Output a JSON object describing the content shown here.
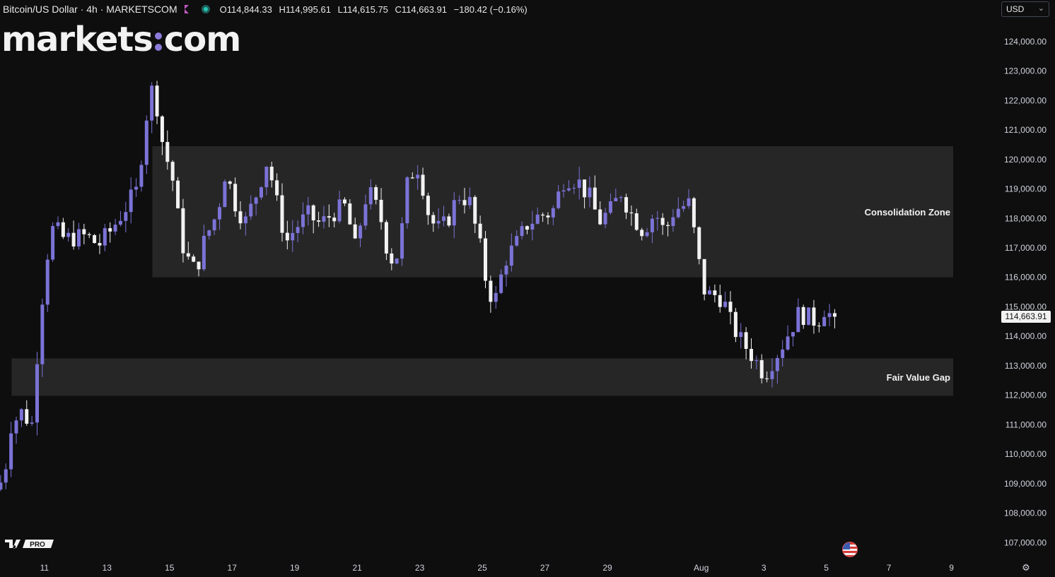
{
  "header": {
    "symbol": "Bitcoin/US Dollar · 4h · MARKETSCOM",
    "open": "O114,844.33",
    "high": "H114,995.61",
    "low": "L114,615.75",
    "close": "C114,663.91",
    "change": "−180.42 (−0.16%)"
  },
  "logo": {
    "part1": "markets",
    "part2": "com"
  },
  "currency": {
    "value": "USD"
  },
  "tv_badge": {
    "label": "PRO"
  },
  "colors": {
    "background": "#0e0e0f",
    "bullish": "#7b73d6",
    "bearish": "#f2f2f2",
    "zone": "#262626",
    "text": "#d1d4dc"
  },
  "last_price_label": "114,663.91",
  "chart_data": {
    "type": "candlestick",
    "title": "Bitcoin/US Dollar · 4h · MARKETSCOM",
    "ylim": [
      106600,
      124500
    ],
    "y_ticks": [
      "124,000.00",
      "123,000.00",
      "122,000.00",
      "121,000.00",
      "120,000.00",
      "119,000.00",
      "118,000.00",
      "117,000.00",
      "116,000.00",
      "115,000.00",
      "114,000.00",
      "113,000.00",
      "112,000.00",
      "111,000.00",
      "110,000.00",
      "109,000.00",
      "108,000.00",
      "107,000.00"
    ],
    "y_tick_values": [
      124000,
      123000,
      122000,
      121000,
      120000,
      119000,
      118000,
      117000,
      116000,
      115000,
      114000,
      113000,
      112000,
      111000,
      110000,
      109000,
      108000,
      107000
    ],
    "x_ticks": [
      "11",
      "13",
      "15",
      "17",
      "19",
      "21",
      "23",
      "25",
      "27",
      "29",
      "Aug",
      "3",
      "5",
      "7",
      "9"
    ],
    "x_tick_days": [
      11,
      13,
      15,
      17,
      19,
      21,
      23,
      25,
      27,
      29,
      32,
      34,
      36,
      38,
      40
    ],
    "x_range_days": [
      9.58,
      40.1
    ],
    "zones": [
      {
        "label": "Consolidation Zone",
        "day_start": 14.45,
        "day_end": 40.1,
        "low": 116000,
        "high": 120450
      },
      {
        "label": "Fair Value Gap",
        "day_start": 9.95,
        "day_end": 40.1,
        "low": 111980,
        "high": 113250
      }
    ],
    "last_price": 114663.91,
    "key_prices": {
      "start_close": 108800,
      "high_jul14": 123100,
      "jul15_close": 120000,
      "jul25_low": 114800,
      "jul28_high": 119800,
      "aug2_low": 113000,
      "aug3_low": 112000,
      "aug5_high": 115700,
      "last": 114663.91
    }
  }
}
